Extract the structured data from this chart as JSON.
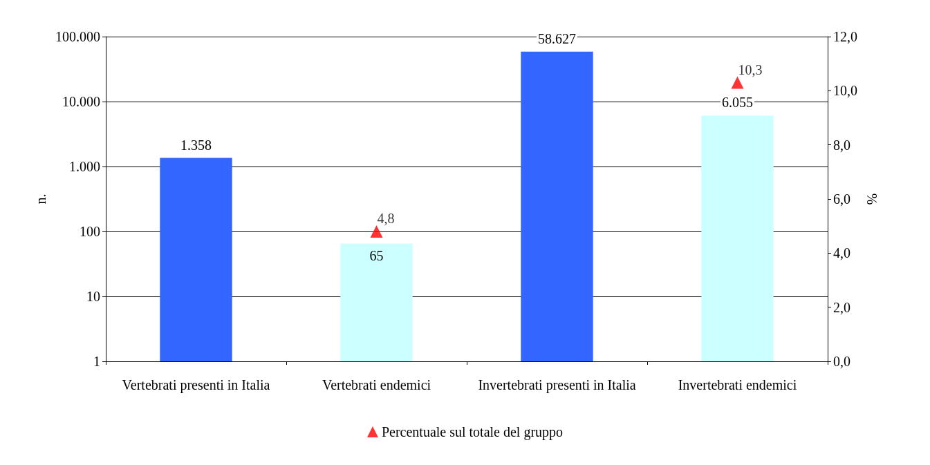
{
  "chart_data": {
    "type": "bar",
    "categories": [
      "Vertebrati presenti in Italia",
      "Vertebrati endemici",
      "Invertebrati presenti in Italia",
      "Invertebrati endemici"
    ],
    "series": [
      {
        "colors": [
          "#3366ff",
          "#ccffff",
          "#3366ff",
          "#ccffff"
        ],
        "values": [
          1358,
          65,
          58627,
          6055
        ],
        "value_labels": [
          "1.358",
          "65",
          "58.627",
          "6.055"
        ]
      },
      {
        "type": "scatter",
        "name": "Percentuale sul totale del gruppo",
        "color": "#ff0000",
        "axis": "y2",
        "marker": "triangle",
        "values": [
          null,
          4.8,
          null,
          10.3
        ],
        "value_labels": [
          null,
          "4,8",
          null,
          "10,3"
        ]
      }
    ],
    "ylabel": "n.",
    "y2label": "%",
    "log": "y",
    "ylim": [
      1,
      100000
    ],
    "yticks": [
      {
        "value": 1,
        "label": "1"
      },
      {
        "value": 10,
        "label": "10"
      },
      {
        "value": 100,
        "label": "100"
      },
      {
        "value": 1000,
        "label": "1.000"
      },
      {
        "value": 10000,
        "label": "10.000"
      },
      {
        "value": 100000,
        "label": "100.000"
      }
    ],
    "y2lim": [
      0,
      12
    ],
    "y2ticks": [
      {
        "value": 0,
        "label": "0,0"
      },
      {
        "value": 2,
        "label": "2,0"
      },
      {
        "value": 4,
        "label": "4,0"
      },
      {
        "value": 6,
        "label": "6,0"
      },
      {
        "value": 8,
        "label": "8,0"
      },
      {
        "value": 10,
        "label": "10,0"
      },
      {
        "value": 12,
        "label": "12,0"
      }
    ],
    "grid": "y",
    "legend": "bottom"
  }
}
